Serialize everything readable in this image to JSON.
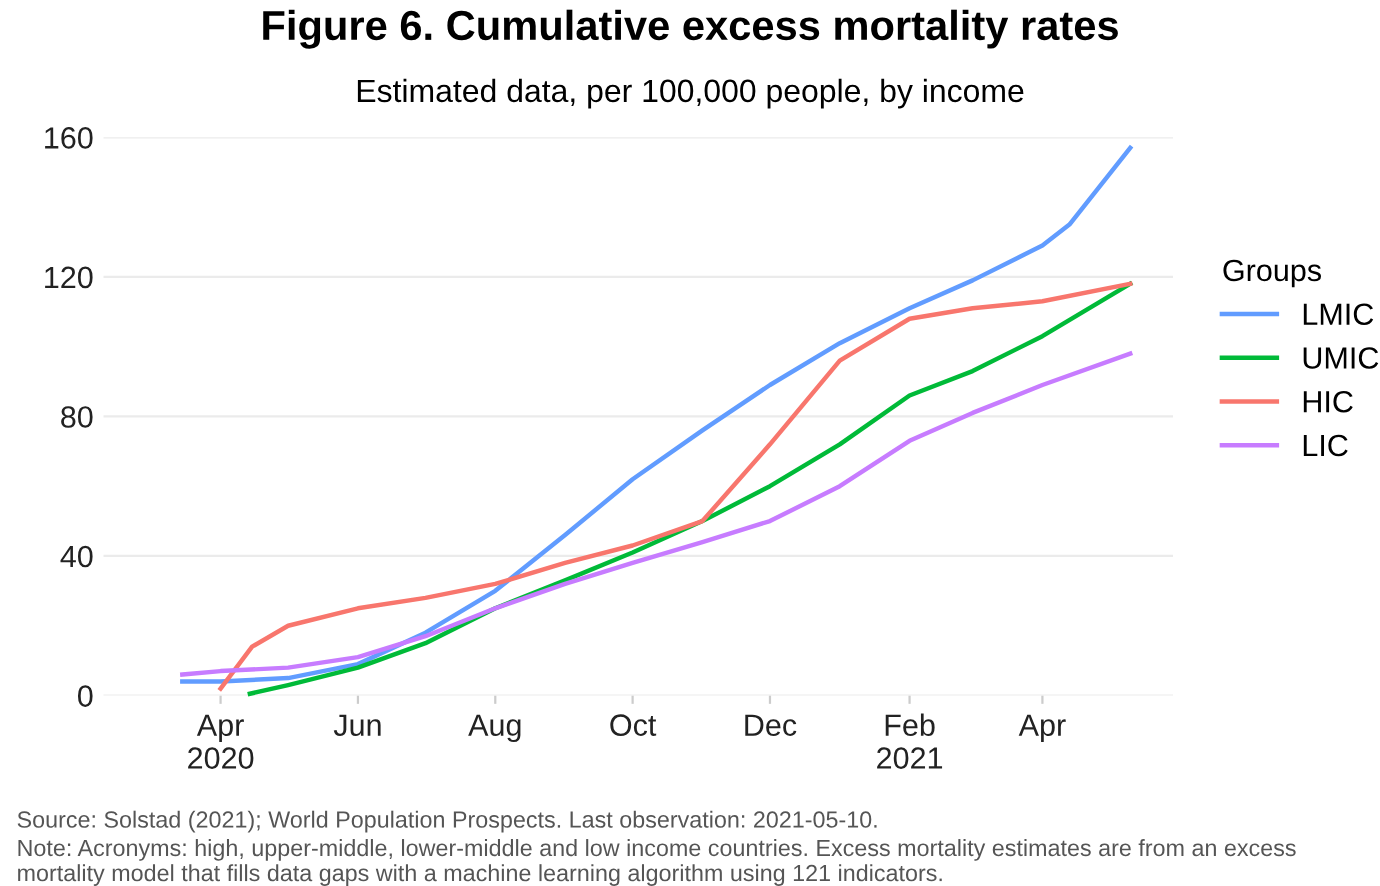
{
  "chart_data": {
    "type": "line",
    "title": "Figure 6. Cumulative excess mortality rates",
    "subtitle": "Estimated data, per 100,000 people, by income",
    "legend_title": "Groups",
    "legend": "right",
    "grid": "y",
    "series": [
      {
        "name": "LMIC",
        "color": "#619cff",
        "x": [
          "2020-03-15",
          "2020-04-01",
          "2020-05-01",
          "2020-06-01",
          "2020-07-01",
          "2020-08-01",
          "2020-09-01",
          "2020-10-01",
          "2020-11-01",
          "2020-12-01",
          "2021-01-01",
          "2021-02-01",
          "2021-03-01",
          "2021-04-01",
          "2021-04-13",
          "2021-05-10"
        ],
        "values": [
          4,
          4,
          5,
          9,
          18,
          30,
          46,
          62,
          76,
          89,
          101,
          111,
          119,
          129,
          135,
          157
        ]
      },
      {
        "name": "UMIC",
        "color": "#00ba38",
        "x": [
          "2020-04-14",
          "2020-05-01",
          "2020-06-01",
          "2020-07-01",
          "2020-08-01",
          "2020-09-01",
          "2020-10-01",
          "2020-11-01",
          "2020-12-01",
          "2021-01-01",
          "2021-02-01",
          "2021-03-01",
          "2021-04-01",
          "2021-05-10"
        ],
        "values": [
          0.5,
          3,
          8,
          15,
          25,
          33,
          41,
          50,
          60,
          72,
          86,
          93,
          103,
          118
        ]
      },
      {
        "name": "HIC",
        "color": "#f8766d",
        "x": [
          "2020-04-01",
          "2020-04-15",
          "2020-05-01",
          "2020-06-01",
          "2020-07-01",
          "2020-08-01",
          "2020-09-01",
          "2020-10-01",
          "2020-11-01",
          "2020-12-01",
          "2021-01-01",
          "2021-02-01",
          "2021-03-01",
          "2021-04-01",
          "2021-05-10"
        ],
        "values": [
          2,
          14,
          20,
          25,
          28,
          32,
          38,
          43,
          50,
          72,
          96,
          108,
          111,
          113,
          118
        ]
      },
      {
        "name": "LIC",
        "color": "#c77cff",
        "x": [
          "2020-03-15",
          "2020-04-01",
          "2020-05-01",
          "2020-06-01",
          "2020-07-01",
          "2020-08-01",
          "2020-09-01",
          "2020-10-01",
          "2020-11-01",
          "2020-12-01",
          "2021-01-01",
          "2021-02-01",
          "2021-03-01",
          "2021-04-01",
          "2021-05-10"
        ],
        "values": [
          6,
          7,
          8,
          11,
          17,
          25,
          32,
          38,
          44,
          50,
          60,
          73,
          81,
          89,
          98
        ]
      }
    ],
    "xlim": [
      "2020-02-09",
      "2021-05-29"
    ],
    "xticks": [
      {
        "value": "2020-04-01",
        "label": "Apr\n2020"
      },
      {
        "value": "2020-06-01",
        "label": "Jun"
      },
      {
        "value": "2020-08-01",
        "label": "Aug"
      },
      {
        "value": "2020-10-01",
        "label": "Oct"
      },
      {
        "value": "2020-12-01",
        "label": "Dec"
      },
      {
        "value": "2021-02-01",
        "label": "Feb\n2021"
      },
      {
        "value": "2021-04-01",
        "label": "Apr"
      }
    ],
    "ylim": [
      0,
      160
    ],
    "yticks": [
      0,
      40,
      80,
      120,
      160
    ],
    "annotations": [
      "Source: Solstad (2021); World Population Prospects. Last observation: 2021-05-10.",
      "Note: Acronyms: high, upper-middle, lower-middle and low income countries. Excess mortality estimates are from an excess mortality model that fills data gaps with a machine learning algorithm using 121 indicators."
    ]
  }
}
